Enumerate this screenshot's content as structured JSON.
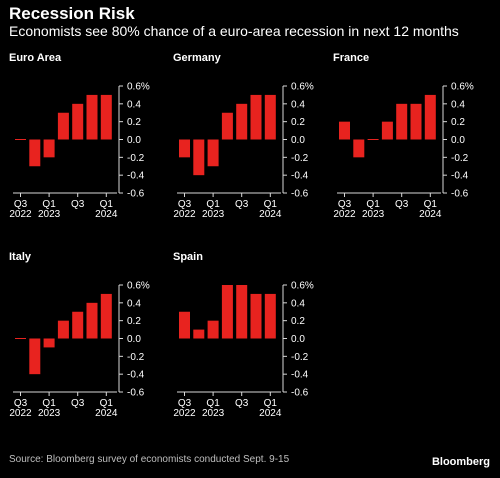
{
  "header": {
    "title": "Recession Risk",
    "subtitle": "Economists see 80% chance of a euro-area recession in next 12 months"
  },
  "footer": {
    "source": "Source: Bloomberg survey of economists conducted Sept. 9-15",
    "logo": "Bloomberg"
  },
  "colors": {
    "bar": "#e8231f",
    "axis": "#d9d9d9",
    "zero_line": "#e8231f",
    "text": "#ffffff",
    "background": "#000000"
  },
  "chart_data": [
    {
      "type": "bar",
      "title": "Euro Area",
      "categories": [
        "Q3 2022",
        "Q4 2022",
        "Q1 2023",
        "Q2 2023",
        "Q3 2023",
        "Q4 2023",
        "Q1 2024"
      ],
      "values": [
        0,
        -0.3,
        -0.2,
        0.3,
        0.4,
        0.5,
        0.5
      ],
      "x_tick_labels": [
        {
          "index": 0,
          "lines": [
            "Q3",
            "2022"
          ]
        },
        {
          "index": 2,
          "lines": [
            "Q1",
            "2023"
          ]
        },
        {
          "index": 4,
          "lines": [
            "Q3",
            ""
          ]
        },
        {
          "index": 6,
          "lines": [
            "Q1",
            "2024"
          ]
        }
      ],
      "y_ticks": [
        0.6,
        0.4,
        0.2,
        0.0,
        -0.2,
        -0.4,
        -0.6
      ],
      "y_tick_labels": [
        "0.6%",
        "0.4",
        "0.2",
        "0.0",
        "-0.2",
        "-0.4",
        "-0.6"
      ],
      "ylim": [
        -0.6,
        0.6
      ]
    },
    {
      "type": "bar",
      "title": "Germany",
      "categories": [
        "Q3 2022",
        "Q4 2022",
        "Q1 2023",
        "Q2 2023",
        "Q3 2023",
        "Q4 2023",
        "Q1 2024"
      ],
      "values": [
        -0.2,
        -0.4,
        -0.3,
        0.3,
        0.4,
        0.5,
        0.5
      ],
      "x_tick_labels": [
        {
          "index": 0,
          "lines": [
            "Q3",
            "2022"
          ]
        },
        {
          "index": 2,
          "lines": [
            "Q1",
            "2023"
          ]
        },
        {
          "index": 4,
          "lines": [
            "Q3",
            ""
          ]
        },
        {
          "index": 6,
          "lines": [
            "Q1",
            "2024"
          ]
        }
      ],
      "y_ticks": [
        0.6,
        0.4,
        0.2,
        0.0,
        -0.2,
        -0.4,
        -0.6
      ],
      "y_tick_labels": [
        "0.6%",
        "0.4",
        "0.2",
        "0.0",
        "-0.2",
        "-0.4",
        "-0.6"
      ],
      "ylim": [
        -0.6,
        0.6
      ]
    },
    {
      "type": "bar",
      "title": "France",
      "categories": [
        "Q3 2022",
        "Q4 2022",
        "Q1 2023",
        "Q2 2023",
        "Q3 2023",
        "Q4 2023",
        "Q1 2024"
      ],
      "values": [
        0.2,
        -0.2,
        0,
        0.2,
        0.4,
        0.4,
        0.5
      ],
      "x_tick_labels": [
        {
          "index": 0,
          "lines": [
            "Q3",
            "2022"
          ]
        },
        {
          "index": 2,
          "lines": [
            "Q1",
            "2023"
          ]
        },
        {
          "index": 4,
          "lines": [
            "Q3",
            ""
          ]
        },
        {
          "index": 6,
          "lines": [
            "Q1",
            "2024"
          ]
        }
      ],
      "y_ticks": [
        0.6,
        0.4,
        0.2,
        0.0,
        -0.2,
        -0.4,
        -0.6
      ],
      "y_tick_labels": [
        "0.6%",
        "0.4",
        "0.2",
        "0.0",
        "-0.2",
        "-0.4",
        "-0.6"
      ],
      "ylim": [
        -0.6,
        0.6
      ]
    },
    {
      "type": "bar",
      "title": "Italy",
      "categories": [
        "Q3 2022",
        "Q4 2022",
        "Q1 2023",
        "Q2 2023",
        "Q3 2023",
        "Q4 2023",
        "Q1 2024"
      ],
      "values": [
        0,
        -0.4,
        -0.1,
        0.2,
        0.3,
        0.4,
        0.5
      ],
      "x_tick_labels": [
        {
          "index": 0,
          "lines": [
            "Q3",
            "2022"
          ]
        },
        {
          "index": 2,
          "lines": [
            "Q1",
            "2023"
          ]
        },
        {
          "index": 4,
          "lines": [
            "Q3",
            ""
          ]
        },
        {
          "index": 6,
          "lines": [
            "Q1",
            "2024"
          ]
        }
      ],
      "y_ticks": [
        0.6,
        0.4,
        0.2,
        0.0,
        -0.2,
        -0.4,
        -0.6
      ],
      "y_tick_labels": [
        "0.6%",
        "0.4",
        "0.2",
        "0.0",
        "-0.2",
        "-0.4",
        "-0.6"
      ],
      "ylim": [
        -0.6,
        0.6
      ]
    },
    {
      "type": "bar",
      "title": "Spain",
      "categories": [
        "Q3 2022",
        "Q4 2022",
        "Q1 2023",
        "Q2 2023",
        "Q3 2023",
        "Q4 2023",
        "Q1 2024"
      ],
      "values": [
        0.3,
        0.1,
        0.2,
        0.6,
        0.6,
        0.5,
        0.5
      ],
      "x_tick_labels": [
        {
          "index": 0,
          "lines": [
            "Q3",
            "2022"
          ]
        },
        {
          "index": 2,
          "lines": [
            "Q1",
            "2023"
          ]
        },
        {
          "index": 4,
          "lines": [
            "Q3",
            ""
          ]
        },
        {
          "index": 6,
          "lines": [
            "Q1",
            "2024"
          ]
        }
      ],
      "y_ticks": [
        0.6,
        0.4,
        0.2,
        0.0,
        -0.2,
        -0.4,
        -0.6
      ],
      "y_tick_labels": [
        "0.6%",
        "0.4",
        "0.2",
        "0.0",
        "-0.2",
        "-0.4",
        "-0.6"
      ],
      "ylim": [
        -0.6,
        0.6
      ]
    }
  ]
}
